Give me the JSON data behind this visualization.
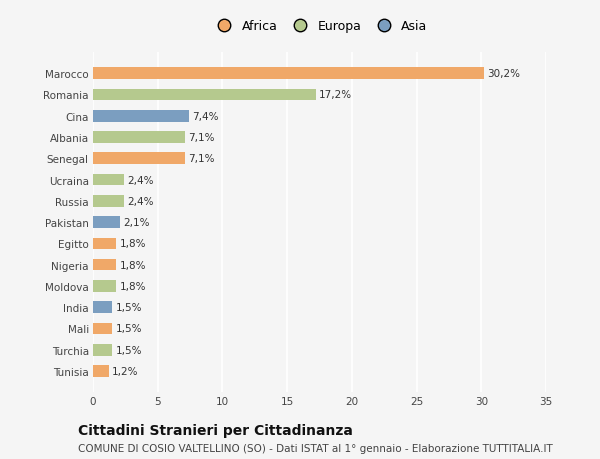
{
  "countries": [
    "Tunisia",
    "Turchia",
    "Mali",
    "India",
    "Moldova",
    "Nigeria",
    "Egitto",
    "Pakistan",
    "Russia",
    "Ucraina",
    "Senegal",
    "Albania",
    "Cina",
    "Romania",
    "Marocco"
  ],
  "values": [
    1.2,
    1.5,
    1.5,
    1.5,
    1.8,
    1.8,
    1.8,
    2.1,
    2.4,
    2.4,
    7.1,
    7.1,
    7.4,
    17.2,
    30.2
  ],
  "labels": [
    "1,2%",
    "1,5%",
    "1,5%",
    "1,5%",
    "1,8%",
    "1,8%",
    "1,8%",
    "2,1%",
    "2,4%",
    "2,4%",
    "7,1%",
    "7,1%",
    "7,4%",
    "17,2%",
    "30,2%"
  ],
  "continents": [
    "Africa",
    "Europa",
    "Africa",
    "Asia",
    "Europa",
    "Africa",
    "Africa",
    "Asia",
    "Europa",
    "Europa",
    "Africa",
    "Europa",
    "Asia",
    "Europa",
    "Africa"
  ],
  "continent_colors": {
    "Africa": "#F0A868",
    "Europa": "#B5C98E",
    "Asia": "#7B9EC0"
  },
  "legend_labels": [
    "Africa",
    "Europa",
    "Asia"
  ],
  "legend_colors": [
    "#F0A868",
    "#B5C98E",
    "#7B9EC0"
  ],
  "xlim": [
    0,
    35
  ],
  "xticks": [
    0,
    5,
    10,
    15,
    20,
    25,
    30,
    35
  ],
  "title": "Cittadini Stranieri per Cittadinanza",
  "subtitle": "COMUNE DI COSIO VALTELLINO (SO) - Dati ISTAT al 1° gennaio - Elaborazione TUTTITALIA.IT",
  "bg_color": "#f5f5f5",
  "bar_height": 0.55,
  "label_fontsize": 7.5,
  "title_fontsize": 10,
  "subtitle_fontsize": 7.5,
  "ytick_fontsize": 7.5,
  "xtick_fontsize": 7.5,
  "grid_color": "#ffffff"
}
